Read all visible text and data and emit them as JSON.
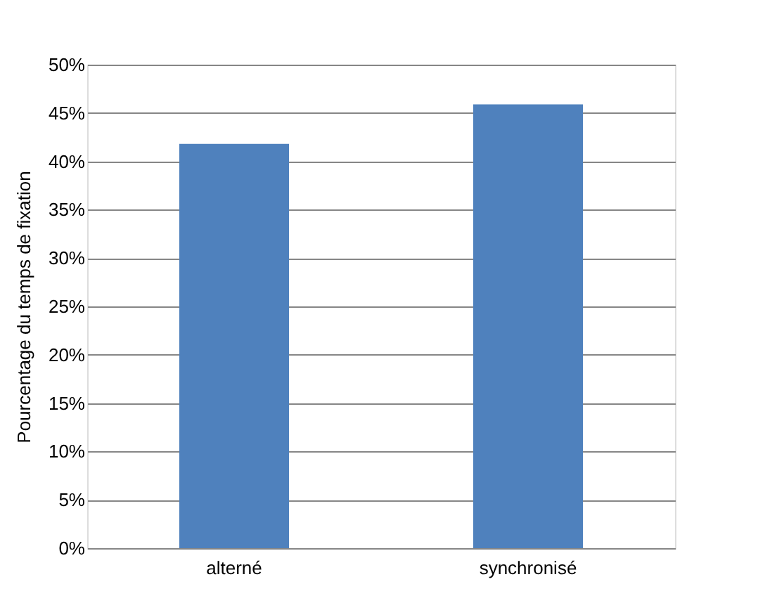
{
  "chart_data": {
    "type": "bar",
    "ylabel": "Pourcentage du temps de fixation",
    "categories": [
      "alterné",
      "synchronisé"
    ],
    "values": [
      41.8,
      45.9
    ],
    "color": "#4f81bd",
    "ylim": [
      0,
      50
    ],
    "yticks": [
      {
        "value": 0,
        "label": "0%"
      },
      {
        "value": 5,
        "label": "5%"
      },
      {
        "value": 10,
        "label": "10%"
      },
      {
        "value": 15,
        "label": "15%"
      },
      {
        "value": 20,
        "label": "20%"
      },
      {
        "value": 25,
        "label": "25%"
      },
      {
        "value": 30,
        "label": "30%"
      },
      {
        "value": 35,
        "label": "35%"
      },
      {
        "value": 40,
        "label": "40%"
      },
      {
        "value": 45,
        "label": "45%"
      },
      {
        "value": 50,
        "label": "50%"
      }
    ],
    "grid": "y"
  }
}
